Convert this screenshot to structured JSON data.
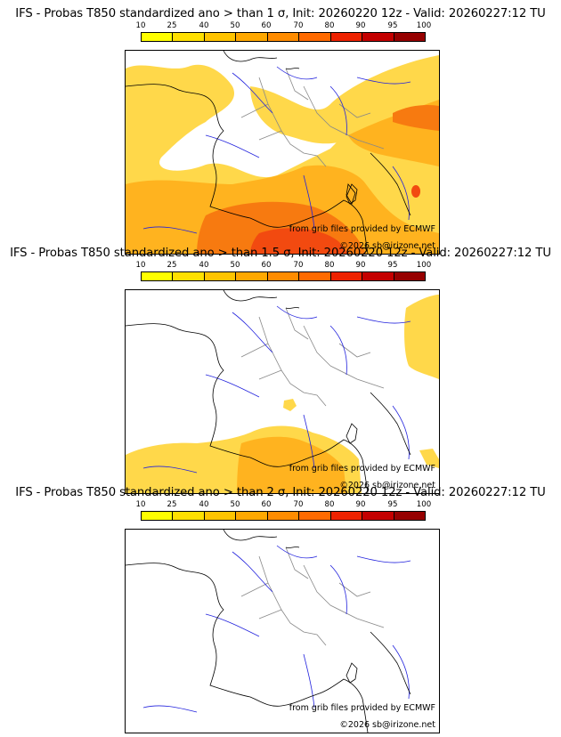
{
  "panels": [
    {
      "title": "IFS - Probas T850  standardized ano > than 1 σ, Init: 20260220 12z - Valid: 20260227:12 TU",
      "credit_source": "from grib files provided by ECMWF",
      "credit_copyright": "©2026 sb@irizone.net"
    },
    {
      "title": "IFS - Probas T850  standardized ano > than 1.5 σ, Init: 20260220 12z - Valid: 20260227:12 TU",
      "credit_source": "from grib files provided by ECMWF",
      "credit_copyright": "©2026 sb@irizone.net"
    },
    {
      "title": "IFS - Probas T850  standardized ano > than 2 σ, Init: 20260220 12z - Valid: 20260227:12 TU",
      "credit_source": "from grib files provided by ECMWF",
      "credit_copyright": "©2026 sb@irizone.net"
    }
  ],
  "colorbar": {
    "ticks": [
      "10",
      "25",
      "40",
      "50",
      "60",
      "70",
      "80",
      "90",
      "95",
      "100"
    ],
    "colors": [
      "#ffff00",
      "#ffe000",
      "#ffc400",
      "#ffa800",
      "#ff8c00",
      "#ff6a00",
      "#ee2200",
      "#c40000",
      "#960000",
      "#5a0000"
    ]
  },
  "colors": {
    "coast": "#000000",
    "rivers": "#2222dd",
    "borders": "#888888",
    "fill_low": "#ffd84a",
    "fill_mid": "#ffb31f",
    "fill_high": "#f77a10",
    "fill_max": "#f24a10"
  }
}
